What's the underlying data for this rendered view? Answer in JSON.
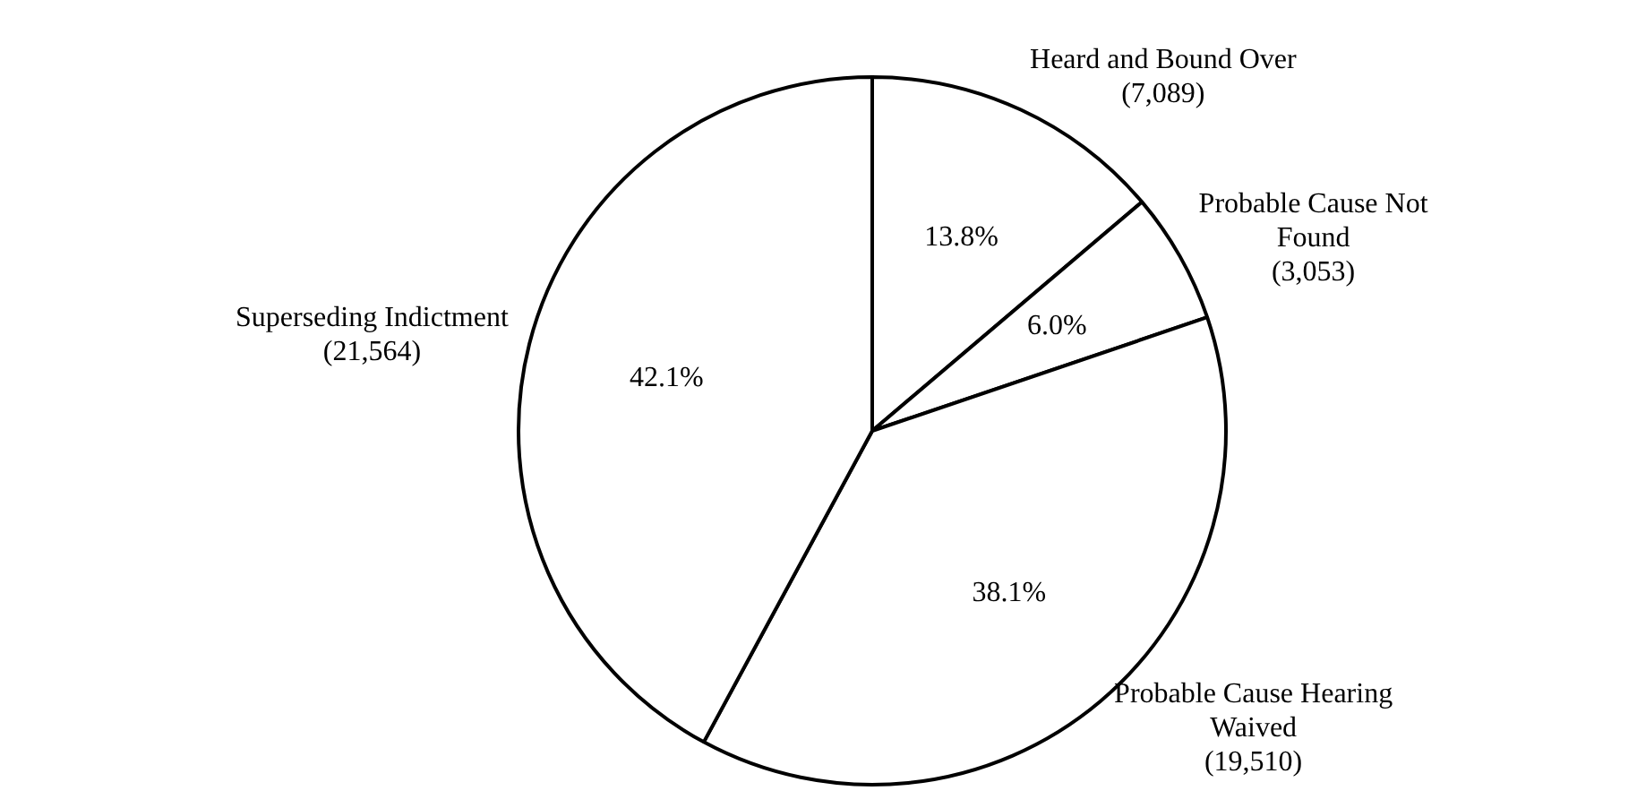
{
  "chart_data": {
    "type": "pie",
    "categories": [
      "Heard and Bound Over (7,089)",
      "Probable Cause Not Found (3,053)",
      "Probable Cause Hearing Waived (19,510)",
      "Superseding Indictment (21,564)"
    ],
    "values": [
      13.8,
      6.0,
      38.1,
      42.1
    ],
    "colors": [
      "#ffffff",
      "#ffffff",
      "#ffffff",
      "#ffffff"
    ],
    "value_labels": [
      "13.8%",
      "6.0%",
      "38.1%",
      "42.1%"
    ],
    "legend": false
  }
}
